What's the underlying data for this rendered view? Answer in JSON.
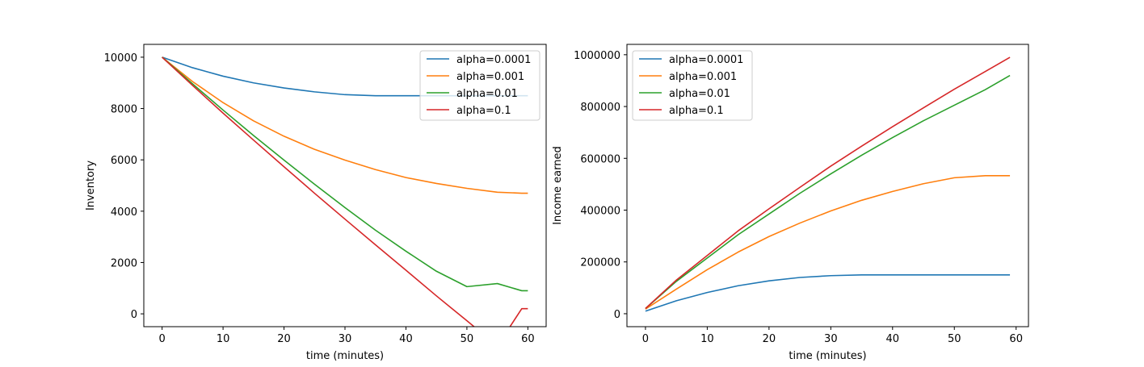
{
  "chart_data": [
    {
      "type": "line",
      "title": "",
      "xlabel": "time (minutes)",
      "ylabel": "Inventory",
      "xlim": [
        -3,
        63
      ],
      "ylim": [
        -500,
        10500
      ],
      "xticks": [
        0,
        10,
        20,
        30,
        40,
        50,
        60
      ],
      "yticks": [
        0,
        2000,
        4000,
        6000,
        8000,
        10000
      ],
      "legend": "top-right",
      "grid": false,
      "series": [
        {
          "name": "alpha=0.0001",
          "color": "#1f77b4",
          "x": [
            0,
            5,
            10,
            15,
            20,
            25,
            30,
            35,
            40,
            45,
            50,
            55,
            59,
            60
          ],
          "y": [
            10000,
            9590,
            9260,
            9000,
            8800,
            8650,
            8540,
            8500,
            8500,
            8500,
            8500,
            8500,
            8500,
            8500
          ]
        },
        {
          "name": "alpha=0.001",
          "color": "#ff7f0e",
          "x": [
            0,
            5,
            10,
            15,
            20,
            25,
            30,
            35,
            40,
            45,
            50,
            55,
            59,
            60
          ],
          "y": [
            10000,
            9050,
            8230,
            7520,
            6920,
            6410,
            5990,
            5620,
            5310,
            5080,
            4890,
            4740,
            4700,
            4700
          ]
        },
        {
          "name": "alpha=0.01",
          "color": "#2ca02c",
          "x": [
            0,
            5,
            10,
            15,
            20,
            25,
            30,
            35,
            40,
            45,
            50,
            55,
            59,
            60
          ],
          "y": [
            10000,
            8960,
            7940,
            6950,
            5990,
            5050,
            4140,
            3260,
            2440,
            1660,
            1060,
            1180,
            900,
            900
          ]
        },
        {
          "name": "alpha=0.1",
          "color": "#d62728",
          "x": [
            0,
            5,
            10,
            15,
            20,
            25,
            30,
            35,
            40,
            45,
            50,
            55,
            59,
            60
          ],
          "y": [
            10000,
            8900,
            7820,
            6770,
            5730,
            4700,
            3690,
            2690,
            1700,
            700,
            -270,
            -1250,
            200,
            200
          ]
        }
      ]
    },
    {
      "type": "line",
      "title": "",
      "xlabel": "time (minutes)",
      "ylabel": "Income earned",
      "xlim": [
        -3,
        62
      ],
      "ylim": [
        -50000,
        1040000
      ],
      "xticks": [
        0,
        10,
        20,
        30,
        40,
        50,
        60
      ],
      "yticks": [
        0,
        200000,
        400000,
        600000,
        800000,
        1000000
      ],
      "legend": "top-left",
      "grid": false,
      "series": [
        {
          "name": "alpha=0.0001",
          "color": "#1f77b4",
          "x": [
            0,
            5,
            10,
            15,
            20,
            25,
            30,
            35,
            40,
            45,
            50,
            55,
            59
          ],
          "y": [
            10000,
            50000,
            82000,
            108000,
            127000,
            140000,
            147000,
            150000,
            150000,
            150000,
            150000,
            150000,
            150000
          ]
        },
        {
          "name": "alpha=0.001",
          "color": "#ff7f0e",
          "x": [
            0,
            5,
            10,
            15,
            20,
            25,
            30,
            35,
            40,
            45,
            50,
            55,
            59
          ],
          "y": [
            18000,
            95000,
            170000,
            238000,
            298000,
            350000,
            397000,
            438000,
            472000,
            502000,
            525000,
            533000,
            533000
          ]
        },
        {
          "name": "alpha=0.01",
          "color": "#2ca02c",
          "x": [
            0,
            5,
            10,
            15,
            20,
            25,
            30,
            35,
            40,
            45,
            50,
            55,
            59
          ],
          "y": [
            20000,
            125000,
            215000,
            305000,
            385000,
            465000,
            540000,
            612000,
            680000,
            745000,
            805000,
            865000,
            920000
          ]
        },
        {
          "name": "alpha=0.1",
          "color": "#d62728",
          "x": [
            0,
            5,
            10,
            15,
            20,
            25,
            30,
            35,
            40,
            45,
            50,
            55,
            59
          ],
          "y": [
            20000,
            130000,
            225000,
            320000,
            405000,
            488000,
            570000,
            647000,
            722000,
            795000,
            867000,
            935000,
            990000
          ]
        }
      ]
    }
  ]
}
